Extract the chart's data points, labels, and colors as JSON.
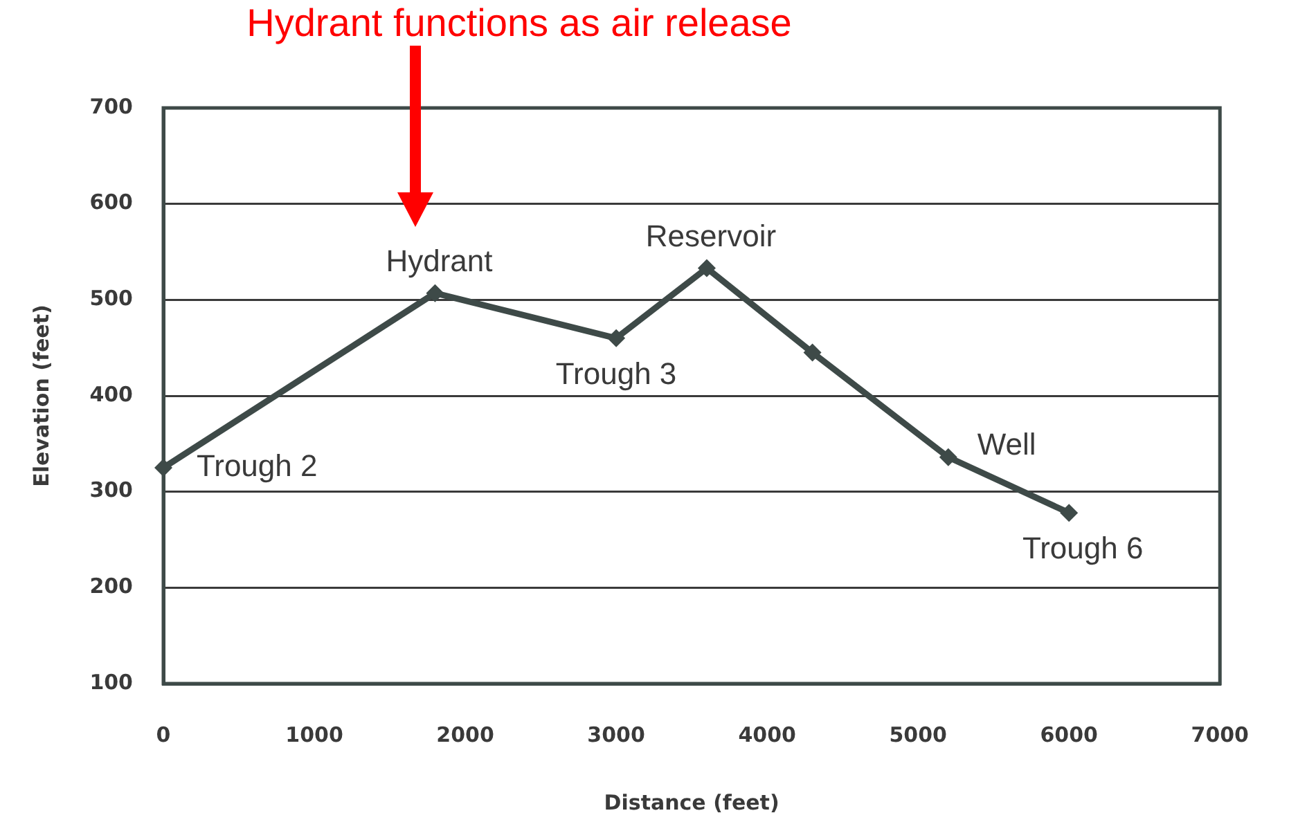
{
  "chart_data": {
    "type": "line",
    "xlabel": "Distance (feet)",
    "ylabel": "Elevation (feet)",
    "x": [
      0,
      1800,
      3000,
      3600,
      4300,
      5200,
      6000
    ],
    "series": [
      {
        "color": "#3e4a48",
        "values": [
          325,
          507,
          460,
          533,
          445,
          336,
          278
        ]
      }
    ],
    "xlim": [
      0,
      7000
    ],
    "xticks": [
      0,
      1000,
      2000,
      3000,
      4000,
      5000,
      6000,
      7000
    ],
    "ylim": [
      100,
      700
    ],
    "yticks": [
      100,
      200,
      300,
      400,
      500,
      600,
      700
    ],
    "grid": "y",
    "marker": "diamond",
    "line_style": "solid",
    "annotations": [
      "Hydrant functions as air release",
      {
        "text": "Trough 2",
        "x": 0,
        "y": 325
      },
      {
        "text": "Hydrant",
        "x": 1800,
        "y": 507
      },
      {
        "text": "Trough 3",
        "x": 3000,
        "y": 460
      },
      {
        "text": "Reservoir",
        "x": 3600,
        "y": 533
      },
      {
        "text": "Well",
        "x": 5200,
        "y": 336
      },
      {
        "text": "Trough 6",
        "x": 6000,
        "y": 278
      }
    ]
  }
}
